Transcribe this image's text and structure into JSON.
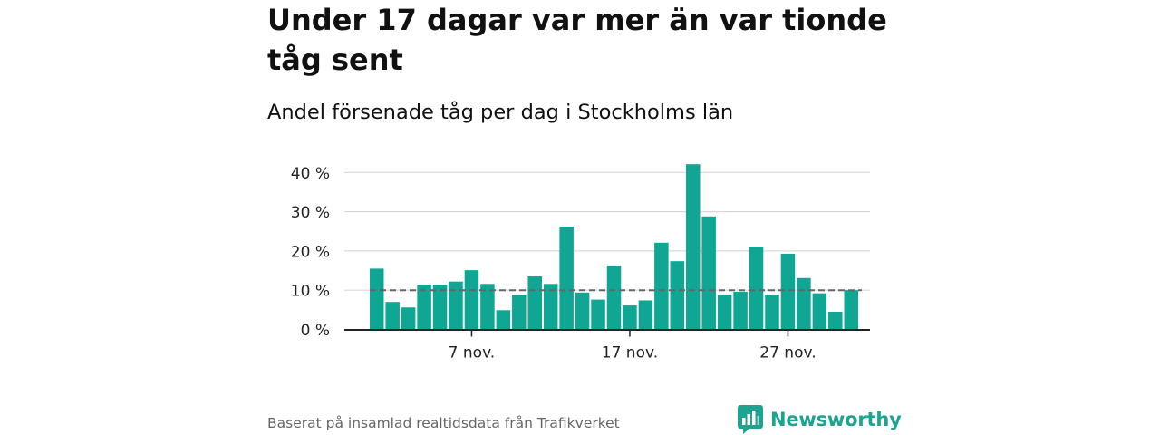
{
  "title": "Under 17 dagar var mer än var tionde tåg sent",
  "subtitle": "Andel försenade tåg per dag i Stockholms län",
  "source": "Baserat på insamlad realtidsdata från Trafikverket",
  "brand": {
    "name": "Newsworthy",
    "icon": "newsworthy-logo-icon",
    "color": "#1ea391"
  },
  "colors": {
    "bar": "#0fa693",
    "reference_line": "#666666",
    "grid": "#d8d8d8",
    "axis": "#222222"
  },
  "chart_data": {
    "type": "bar",
    "x": [
      "2023-11-01",
      "2023-11-02",
      "2023-11-03",
      "2023-11-04",
      "2023-11-05",
      "2023-11-06",
      "2023-11-07",
      "2023-11-08",
      "2023-11-09",
      "2023-11-10",
      "2023-11-11",
      "2023-11-12",
      "2023-11-13",
      "2023-11-14",
      "2023-11-15",
      "2023-11-16",
      "2023-11-17",
      "2023-11-18",
      "2023-11-19",
      "2023-11-20",
      "2023-11-21",
      "2023-11-22",
      "2023-11-23",
      "2023-11-24",
      "2023-11-25",
      "2023-11-26",
      "2023-11-27",
      "2023-11-28",
      "2023-11-29",
      "2023-11-30",
      "2023-12-01"
    ],
    "values": [
      15.5,
      7.0,
      5.6,
      11.4,
      11.4,
      12.2,
      15.1,
      11.6,
      4.9,
      8.9,
      13.5,
      11.6,
      26.2,
      9.4,
      7.6,
      16.3,
      6.1,
      7.4,
      22.1,
      17.4,
      42.1,
      28.8,
      8.9,
      9.6,
      21.1,
      8.9,
      19.3,
      13.1,
      9.2,
      4.5,
      10.0
    ],
    "reference_line": 10,
    "ylim": [
      0,
      42
    ],
    "yticks": [
      0,
      10,
      20,
      30,
      40
    ],
    "ytick_labels": [
      "0 %",
      "10 %",
      "20 %",
      "30 %",
      "40 %"
    ],
    "xtick_dates": [
      "2023-11-07",
      "2023-11-17",
      "2023-11-27"
    ],
    "xtick_labels": [
      "7 nov.",
      "17 nov.",
      "27 nov."
    ],
    "xlabel": "",
    "ylabel": "",
    "grid": true
  }
}
